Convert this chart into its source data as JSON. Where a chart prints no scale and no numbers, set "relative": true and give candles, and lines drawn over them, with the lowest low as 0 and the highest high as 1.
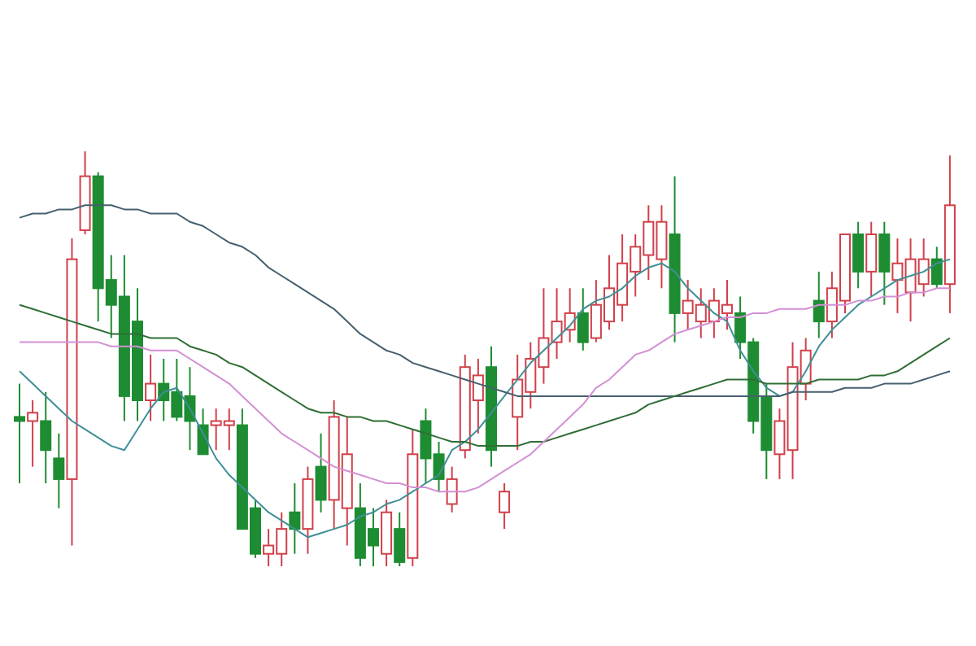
{
  "chart_data": {
    "type": "candlestick",
    "relative": true,
    "categories": [
      null,
      null,
      null,
      null,
      null,
      null,
      null,
      null,
      null,
      null,
      null,
      null,
      null,
      null,
      null,
      null,
      null,
      null,
      null,
      null,
      null,
      null,
      null,
      null,
      null,
      null,
      null,
      null,
      null,
      null,
      null,
      null,
      null,
      null,
      null,
      null,
      null,
      null,
      null,
      null,
      null,
      null,
      null,
      null,
      null,
      null,
      null,
      null,
      null,
      null,
      null,
      null,
      null,
      null,
      null,
      null,
      null,
      null,
      null,
      null,
      null,
      null,
      null,
      null,
      null,
      null,
      null,
      null,
      null,
      null,
      null,
      null
    ],
    "ohlc": [
      [
        0.36,
        0.44,
        0.2,
        0.35
      ],
      [
        0.35,
        0.4,
        0.24,
        0.37
      ],
      [
        0.35,
        0.42,
        0.2,
        0.28
      ],
      [
        0.26,
        0.32,
        0.14,
        0.21
      ],
      [
        0.21,
        0.79,
        0.05,
        0.74
      ],
      [
        0.81,
        1,
        0.8,
        0.94
      ],
      [
        0.94,
        0.95,
        0.59,
        0.67
      ],
      [
        0.69,
        0.75,
        0.55,
        0.63
      ],
      [
        0.65,
        0.75,
        0.35,
        0.41
      ],
      [
        0.59,
        0.67,
        0.35,
        0.4
      ],
      [
        0.4,
        0.51,
        0.35,
        0.44
      ],
      [
        0.44,
        0.5,
        0.35,
        0.4
      ],
      [
        0.42,
        0.5,
        0.35,
        0.36
      ],
      [
        0.41,
        0.48,
        0.28,
        0.35
      ],
      [
        0.34,
        0.38,
        0.27,
        0.27
      ],
      [
        0.34,
        0.38,
        0.28,
        0.35
      ],
      [
        0.34,
        0.38,
        0.28,
        0.35
      ],
      [
        0.34,
        0.38,
        0.09,
        0.09
      ],
      [
        0.14,
        0.16,
        0.02,
        0.03
      ],
      [
        0.03,
        0.09,
        0,
        0.05
      ],
      [
        0.03,
        0.13,
        0,
        0.09
      ],
      [
        0.13,
        0.2,
        0.03,
        0.09
      ],
      [
        0.09,
        0.24,
        0.03,
        0.21
      ],
      [
        0.24,
        0.32,
        0.13,
        0.16
      ],
      [
        0.16,
        0.4,
        0.09,
        0.36
      ],
      [
        0.14,
        0.36,
        0.05,
        0.27
      ],
      [
        0.14,
        0.2,
        0,
        0.02
      ],
      [
        0.09,
        0.14,
        0,
        0.05
      ],
      [
        0.03,
        0.16,
        0,
        0.13
      ],
      [
        0.09,
        0.13,
        0,
        0.01
      ],
      [
        0.02,
        0.33,
        0,
        0.27
      ],
      [
        0.35,
        0.38,
        0.2,
        0.26
      ],
      [
        0.27,
        0.3,
        0.18,
        0.21
      ],
      [
        0.15,
        0.24,
        0.13,
        0.21
      ],
      [
        0.28,
        0.51,
        0.26,
        0.48
      ],
      [
        0.4,
        0.5,
        0.32,
        0.46
      ],
      [
        0.48,
        0.53,
        0.24,
        0.28
      ],
      [
        0.13,
        0.2,
        0.09,
        0.18
      ],
      [
        0.36,
        0.51,
        0.28,
        0.45
      ],
      [
        0.42,
        0.54,
        0.38,
        0.5
      ],
      [
        0.48,
        0.67,
        0.44,
        0.55
      ],
      [
        0.54,
        0.67,
        0.5,
        0.59
      ],
      [
        0.57,
        0.67,
        0.54,
        0.61
      ],
      [
        0.61,
        0.67,
        0.52,
        0.54
      ],
      [
        0.55,
        0.69,
        0.54,
        0.63
      ],
      [
        0.59,
        0.75,
        0.57,
        0.67
      ],
      [
        0.63,
        0.8,
        0.59,
        0.73
      ],
      [
        0.71,
        0.8,
        0.65,
        0.77
      ],
      [
        0.75,
        0.87,
        0.69,
        0.83
      ],
      [
        0.74,
        0.87,
        0.67,
        0.83
      ],
      [
        0.8,
        0.94,
        0.54,
        0.61
      ],
      [
        0.61,
        0.69,
        0.57,
        0.64
      ],
      [
        0.59,
        0.67,
        0.55,
        0.63
      ],
      [
        0.59,
        0.67,
        0.55,
        0.64
      ],
      [
        0.61,
        0.69,
        0.57,
        0.63
      ],
      [
        0.61,
        0.65,
        0.5,
        0.54
      ],
      [
        0.54,
        0.55,
        0.32,
        0.35
      ],
      [
        0.41,
        0.44,
        0.21,
        0.28
      ],
      [
        0.27,
        0.38,
        0.21,
        0.35
      ],
      [
        0.28,
        0.54,
        0.21,
        0.48
      ],
      [
        0.44,
        0.55,
        0.4,
        0.52
      ],
      [
        0.64,
        0.71,
        0.55,
        0.59
      ],
      [
        0.59,
        0.71,
        0.55,
        0.67
      ],
      [
        0.64,
        0.8,
        0.61,
        0.8
      ],
      [
        0.8,
        0.83,
        0.67,
        0.71
      ],
      [
        0.71,
        0.83,
        0.65,
        0.8
      ],
      [
        0.8,
        0.83,
        0.63,
        0.71
      ],
      [
        0.69,
        0.79,
        0.61,
        0.73
      ],
      [
        0.66,
        0.79,
        0.59,
        0.74
      ],
      [
        0.68,
        0.79,
        0.65,
        0.74
      ],
      [
        0.74,
        0.77,
        0.67,
        0.68
      ],
      [
        0.68,
        0.99,
        0.61,
        0.87
      ]
    ],
    "series": [
      {
        "type": "line",
        "color": "#3f8f96",
        "values": [
          0.47,
          0.44,
          0.41,
          0.38,
          0.35,
          0.33,
          0.31,
          0.29,
          0.28,
          0.33,
          0.38,
          0.42,
          0.43,
          0.38,
          0.32,
          0.26,
          0.22,
          0.19,
          0.16,
          0.13,
          0.11,
          0.09,
          0.07,
          0.08,
          0.09,
          0.1,
          0.12,
          0.13,
          0.15,
          0.16,
          0.18,
          0.2,
          0.22,
          0.28,
          0.3,
          0.33,
          0.37,
          0.41,
          0.45,
          0.49,
          0.52,
          0.55,
          0.58,
          0.62,
          0.64,
          0.65,
          0.67,
          0.7,
          0.72,
          0.73,
          0.71,
          0.67,
          0.64,
          0.61,
          0.59,
          0.52,
          0.47,
          0.43,
          0.41,
          0.42,
          0.47,
          0.53,
          0.57,
          0.6,
          0.63,
          0.65,
          0.67,
          0.69,
          0.7,
          0.71,
          0.73,
          0.74
        ]
      },
      {
        "type": "line",
        "color": "#46606e",
        "values": [
          0.84,
          0.85,
          0.85,
          0.86,
          0.86,
          0.87,
          0.87,
          0.87,
          0.86,
          0.86,
          0.85,
          0.85,
          0.85,
          0.83,
          0.82,
          0.8,
          0.78,
          0.77,
          0.75,
          0.72,
          0.7,
          0.68,
          0.66,
          0.64,
          0.62,
          0.59,
          0.56,
          0.54,
          0.52,
          0.51,
          0.49,
          0.48,
          0.47,
          0.46,
          0.45,
          0.44,
          0.43,
          0.42,
          0.41,
          0.41,
          0.41,
          0.41,
          0.41,
          0.41,
          0.41,
          0.41,
          0.41,
          0.41,
          0.41,
          0.41,
          0.41,
          0.41,
          0.41,
          0.41,
          0.41,
          0.41,
          0.41,
          0.41,
          0.41,
          0.42,
          0.42,
          0.42,
          0.42,
          0.43,
          0.43,
          0.43,
          0.44,
          0.44,
          0.44,
          0.45,
          0.46,
          0.47
        ]
      },
      {
        "type": "line",
        "color": "#2f6e35",
        "values": [
          0.63,
          0.62,
          0.61,
          0.6,
          0.59,
          0.58,
          0.57,
          0.56,
          0.56,
          0.56,
          0.55,
          0.55,
          0.55,
          0.53,
          0.52,
          0.51,
          0.49,
          0.48,
          0.46,
          0.44,
          0.42,
          0.4,
          0.38,
          0.37,
          0.37,
          0.36,
          0.36,
          0.35,
          0.35,
          0.34,
          0.33,
          0.32,
          0.31,
          0.3,
          0.3,
          0.29,
          0.29,
          0.29,
          0.29,
          0.3,
          0.3,
          0.31,
          0.32,
          0.33,
          0.34,
          0.35,
          0.36,
          0.37,
          0.39,
          0.4,
          0.41,
          0.42,
          0.43,
          0.44,
          0.45,
          0.45,
          0.45,
          0.44,
          0.44,
          0.44,
          0.44,
          0.45,
          0.45,
          0.45,
          0.45,
          0.46,
          0.46,
          0.47,
          0.49,
          0.51,
          0.53,
          0.55
        ]
      },
      {
        "type": "line",
        "color": "#d48fd4",
        "values": [
          0.54,
          0.54,
          0.54,
          0.54,
          0.54,
          0.54,
          0.54,
          0.53,
          0.53,
          0.53,
          0.52,
          0.52,
          0.52,
          0.5,
          0.48,
          0.46,
          0.44,
          0.41,
          0.38,
          0.35,
          0.32,
          0.3,
          0.28,
          0.26,
          0.24,
          0.23,
          0.22,
          0.21,
          0.2,
          0.2,
          0.19,
          0.19,
          0.18,
          0.18,
          0.18,
          0.19,
          0.21,
          0.23,
          0.25,
          0.27,
          0.3,
          0.33,
          0.36,
          0.39,
          0.43,
          0.45,
          0.48,
          0.51,
          0.52,
          0.54,
          0.56,
          0.57,
          0.58,
          0.59,
          0.6,
          0.6,
          0.61,
          0.61,
          0.62,
          0.62,
          0.62,
          0.63,
          0.63,
          0.63,
          0.64,
          0.64,
          0.65,
          0.65,
          0.66,
          0.66,
          0.67,
          0.67
        ]
      }
    ]
  }
}
